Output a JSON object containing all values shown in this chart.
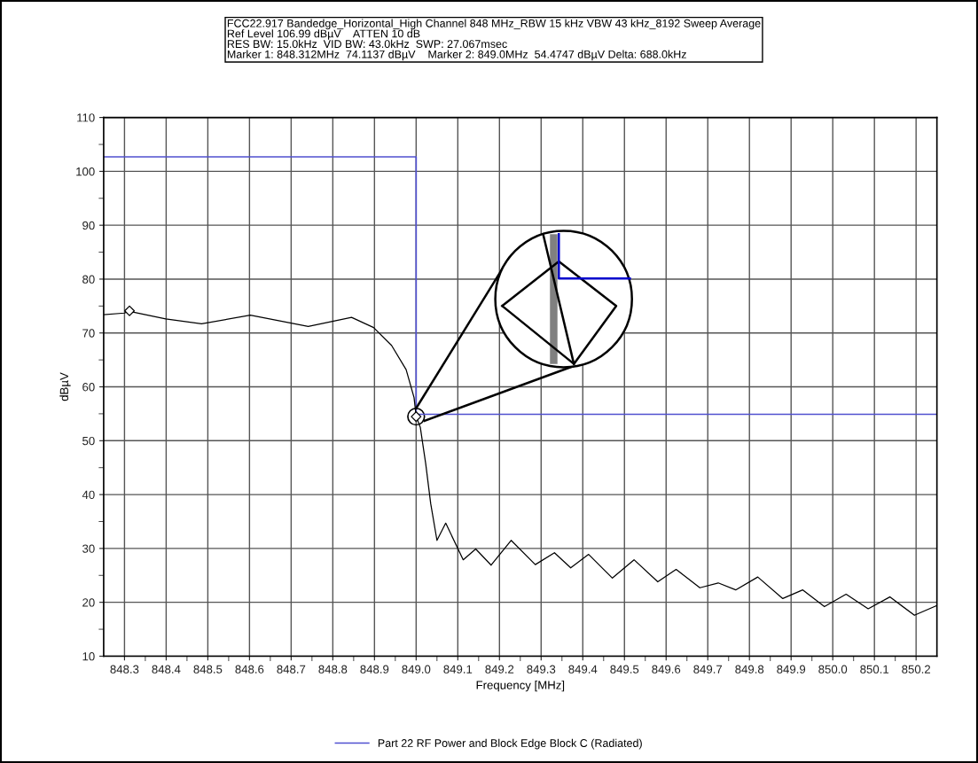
{
  "chart_data": {
    "type": "line",
    "title": "FCC22.917 Bandedge_Horizontal_High Channel 848 MHz_RBW 15 kHz VBW 43 kHz_8192 Sweep Average",
    "subtitle": "Ref Level 106.99 dBµV    ATTEN 10 dB\nRES BW: 15.0kHz  VID BW: 43.0kHz  SWP: 27.067msec\nMarker 1: 848.312MHz  74.1137 dBµV    Marker 2: 849.0MHz  54.4747 dBµV Delta: 688.0kHz",
    "xlabel": "Frequency [MHz]",
    "ylabel": "dBµV",
    "xlim": [
      848.25,
      850.25
    ],
    "ylim": [
      10,
      110
    ],
    "xticks": [
      848.3,
      848.4,
      848.5,
      848.6,
      848.7,
      848.8,
      848.9,
      {
        "value": 849.0,
        "label": "849.0"
      },
      849.1,
      849.2,
      849.3,
      849.4,
      849.5,
      849.6,
      849.7,
      849.8,
      849.9,
      {
        "value": 850.0,
        "label": "850.0"
      },
      850.1,
      850.2,
      {
        "value": 848.35,
        "label": null
      },
      {
        "value": 848.45,
        "label": null
      },
      {
        "value": 848.55,
        "label": null
      },
      {
        "value": 848.65,
        "label": null
      },
      {
        "value": 848.75,
        "label": null
      },
      {
        "value": 848.85,
        "label": null
      },
      {
        "value": 848.95,
        "label": null
      },
      {
        "value": 849.05,
        "label": null
      },
      {
        "value": 849.15,
        "label": null
      },
      {
        "value": 849.25,
        "label": null
      },
      {
        "value": 849.35,
        "label": null
      },
      {
        "value": 849.45,
        "label": null
      },
      {
        "value": 849.55,
        "label": null
      },
      {
        "value": 849.65,
        "label": null
      },
      {
        "value": 849.75,
        "label": null
      },
      {
        "value": 849.85,
        "label": null
      },
      {
        "value": 849.95,
        "label": null
      },
      {
        "value": 850.05,
        "label": null
      },
      {
        "value": 850.15,
        "label": null
      }
    ],
    "yticks": [
      10,
      20,
      30,
      40,
      50,
      60,
      70,
      80,
      90,
      100,
      110,
      {
        "value": 15,
        "label": null
      },
      {
        "value": 25,
        "label": null
      },
      {
        "value": 35,
        "label": null
      },
      {
        "value": 45,
        "label": null
      },
      {
        "value": 55,
        "label": null
      },
      {
        "value": 65,
        "label": null
      },
      {
        "value": 75,
        "label": null
      },
      {
        "value": 85,
        "label": null
      },
      {
        "value": 95,
        "label": null
      },
      {
        "value": 105,
        "label": null
      }
    ],
    "grid": true,
    "legend": "bottom",
    "series": [
      {
        "color": "#000000",
        "x": [
          848.25,
          848.3,
          848.312,
          848.32,
          848.399,
          848.485,
          848.602,
          848.741,
          848.845,
          848.898,
          848.941,
          848.976,
          848.995,
          849.0,
          849.01,
          849.023,
          849.035,
          849.05,
          849.071,
          849.113,
          849.143,
          849.18,
          849.228,
          849.286,
          849.332,
          849.371,
          849.414,
          849.471,
          849.523,
          849.58,
          849.624,
          849.681,
          849.725,
          849.767,
          849.82,
          849.88,
          849.928,
          849.98,
          850.032,
          850.085,
          850.137,
          850.196,
          850.25
        ],
        "values": [
          73.4,
          73.7,
          74.1,
          73.9,
          72.6,
          71.7,
          73.3,
          71.2,
          72.9,
          71.0,
          67.7,
          63.2,
          58.0,
          54.5,
          52.5,
          45.7,
          38.3,
          31.5,
          34.7,
          27.9,
          29.9,
          26.9,
          31.5,
          27.0,
          29.2,
          26.4,
          28.9,
          24.5,
          27.9,
          23.8,
          26.1,
          22.7,
          23.6,
          22.3,
          24.7,
          20.7,
          22.3,
          19.2,
          21.5,
          18.8,
          21.0,
          17.6,
          19.4
        ]
      },
      {
        "type": "step",
        "name": "Part 22 RF Power and Block Edge Block C (Radiated)",
        "color": "#5050d0",
        "x": [
          848.25,
          849.0,
          850.25
        ],
        "values": [
          102.7,
          54.9,
          54.9
        ]
      },
      {
        "type": "scatter",
        "color": "#000000",
        "marker": "diamond",
        "x": [
          848.312,
          849.0
        ],
        "values": [
          74.1137,
          54.4747
        ]
      }
    ]
  }
}
